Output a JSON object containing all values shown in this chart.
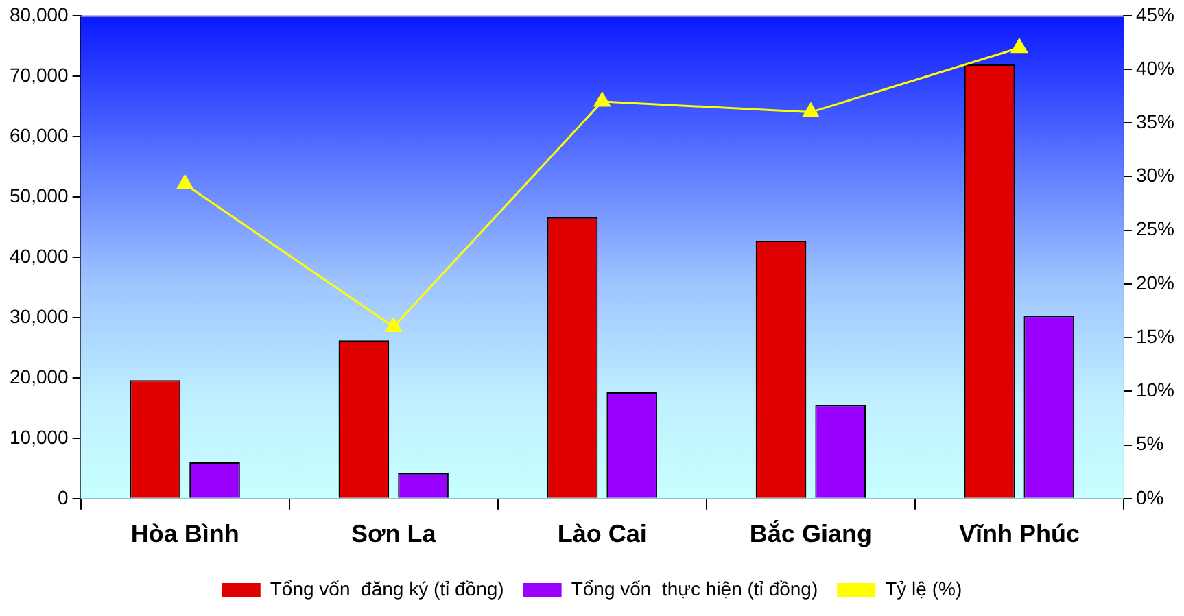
{
  "chart_data": {
    "type": "bar",
    "categories": [
      "Hòa Bình",
      "Sơn La",
      "Lào Cai",
      "Bắc Giang",
      "Vĩnh Phúc"
    ],
    "series": [
      {
        "name": "Tổng vốn  đăng ký (tỉ đồng)",
        "color": "#e00000",
        "values": [
          19600,
          26200,
          46600,
          42700,
          71900
        ]
      },
      {
        "name": "Tổng vốn  thực hiện (tỉ đồng)",
        "color": "#9a00ff",
        "values": [
          6000,
          4200,
          17600,
          15500,
          30300
        ]
      },
      {
        "name": "Tỷ lệ (%)",
        "type": "line",
        "axis": "y2",
        "color": "#ffff00",
        "marker": "triangle",
        "values": [
          29.3,
          16,
          37,
          36,
          42
        ]
      }
    ],
    "ylim": [
      0,
      80000
    ],
    "yticks": [
      {
        "value": 0,
        "label": "0"
      },
      {
        "value": 10000,
        "label": "10,000"
      },
      {
        "value": 20000,
        "label": "20,000"
      },
      {
        "value": 30000,
        "label": "30,000"
      },
      {
        "value": 40000,
        "label": "40,000"
      },
      {
        "value": 50000,
        "label": "50,000"
      },
      {
        "value": 60000,
        "label": "60,000"
      },
      {
        "value": 70000,
        "label": "70,000"
      },
      {
        "value": 80000,
        "label": "80,000"
      }
    ],
    "y2lim": [
      0,
      45
    ],
    "y2ticks": [
      {
        "value": 0,
        "label": "0%"
      },
      {
        "value": 5,
        "label": "5%"
      },
      {
        "value": 10,
        "label": "10%"
      },
      {
        "value": 15,
        "label": "15%"
      },
      {
        "value": 20,
        "label": "20%"
      },
      {
        "value": 25,
        "label": "25%"
      },
      {
        "value": 30,
        "label": "30%"
      },
      {
        "value": 35,
        "label": "35%"
      },
      {
        "value": 40,
        "label": "40%"
      },
      {
        "value": 45,
        "label": "45%"
      }
    ],
    "grid": false,
    "legend": "bottom"
  }
}
